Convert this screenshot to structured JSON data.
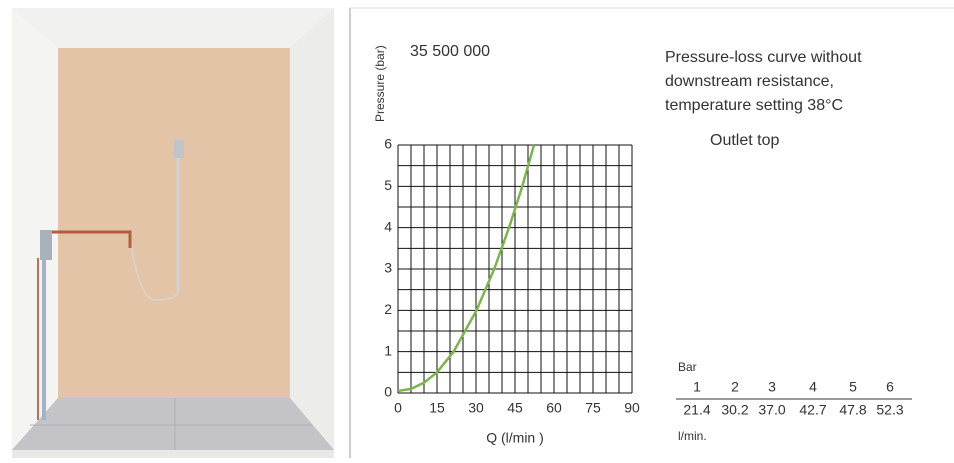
{
  "chart_data": {
    "type": "line",
    "title": "35 500 000",
    "y_label": "Pressure (bar)",
    "x_label": "Q  (l/min )",
    "xlim": [
      0,
      90
    ],
    "xticks": [
      0,
      15,
      30,
      45,
      60,
      75,
      90
    ],
    "ylim": [
      0,
      6
    ],
    "yticks": [
      0,
      1,
      2,
      3,
      4,
      5,
      6
    ],
    "grid": true,
    "series": [
      {
        "color": "#7ab648",
        "x": [
          0,
          5,
          10,
          15,
          21.4,
          30.2,
          37.0,
          42.7,
          47.8,
          52.3
        ],
        "values": [
          0.05,
          0.1,
          0.25,
          0.5,
          1,
          2,
          3,
          4,
          5,
          6
        ]
      }
    ]
  },
  "description": {
    "lines": [
      "Pressure-loss curve without",
      "downstream resistance,",
      "temperature setting 38°C"
    ],
    "outlet": "Outlet top"
  },
  "table": {
    "unit_top": "Bar",
    "header": [
      "1",
      "2",
      "3",
      "4",
      "5",
      "6"
    ],
    "row": [
      "21.4",
      "30.2",
      "37.0",
      "42.7",
      "47.8",
      "52.3"
    ],
    "unit_bottom": "l/min."
  }
}
